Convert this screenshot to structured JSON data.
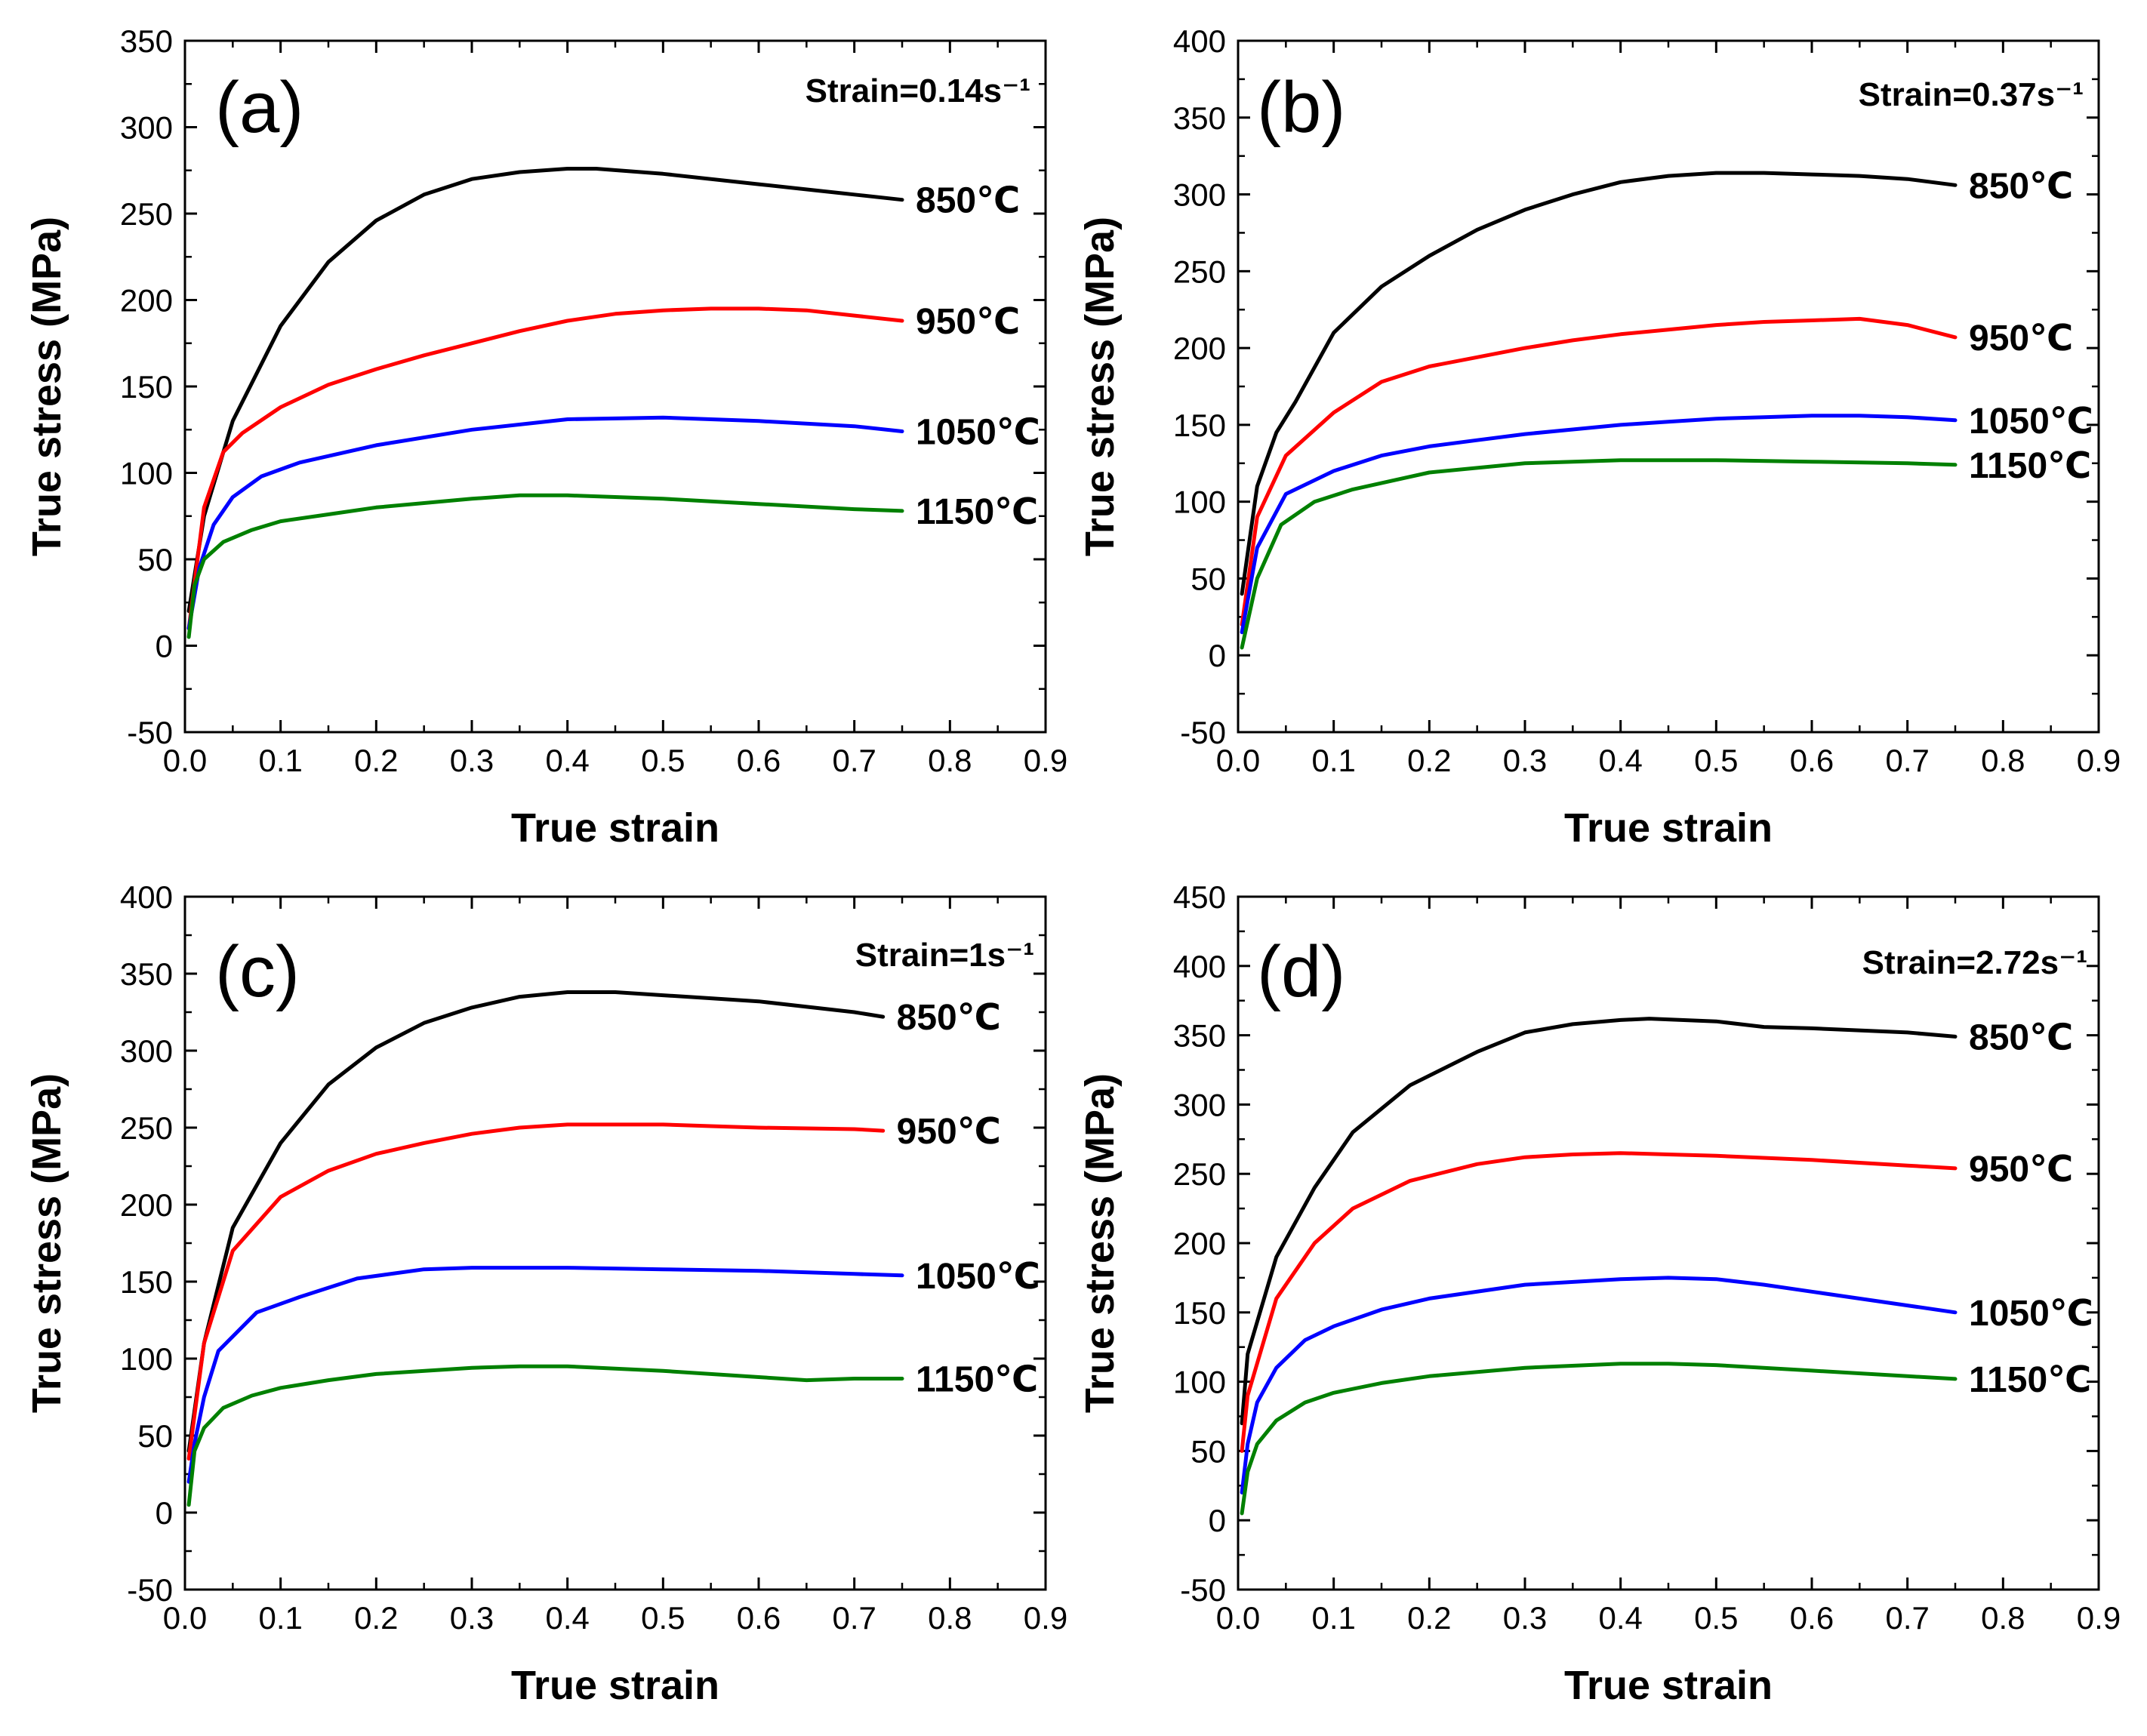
{
  "chart_data": [
    {
      "type": "line",
      "panel": "(a)",
      "annotation": "Strain=0.14s⁻¹",
      "xlabel": "True strain",
      "ylabel": "True stress (MPa)",
      "xlim": [
        0,
        0.9
      ],
      "ylim": [
        -50,
        350
      ],
      "xticks": [
        "0.0",
        "0.1",
        "0.2",
        "0.3",
        "0.4",
        "0.5",
        "0.6",
        "0.7",
        "0.8",
        "0.9"
      ],
      "yticks": [
        "-50",
        "0",
        "50",
        "100",
        "150",
        "200",
        "250",
        "300",
        "350"
      ],
      "series": [
        {
          "name": "850℃",
          "color": "#000000",
          "x": [
            0.004,
            0.02,
            0.05,
            0.1,
            0.15,
            0.2,
            0.25,
            0.3,
            0.35,
            0.4,
            0.43,
            0.5,
            0.6,
            0.7,
            0.75
          ],
          "y": [
            20,
            75,
            130,
            185,
            222,
            246,
            261,
            270,
            274,
            276,
            276,
            273,
            267,
            261,
            258
          ]
        },
        {
          "name": "950℃",
          "color": "#ff0000",
          "x": [
            0.004,
            0.02,
            0.04,
            0.06,
            0.1,
            0.15,
            0.2,
            0.25,
            0.3,
            0.35,
            0.4,
            0.45,
            0.5,
            0.55,
            0.6,
            0.65,
            0.7,
            0.75
          ],
          "y": [
            10,
            80,
            112,
            123,
            138,
            151,
            160,
            168,
            175,
            182,
            188,
            192,
            194,
            195,
            195,
            194,
            191,
            188
          ]
        },
        {
          "name": "1050℃",
          "color": "#0000ff",
          "x": [
            0.004,
            0.015,
            0.03,
            0.05,
            0.08,
            0.12,
            0.2,
            0.3,
            0.4,
            0.5,
            0.55,
            0.6,
            0.7,
            0.75
          ],
          "y": [
            10,
            45,
            70,
            86,
            98,
            106,
            116,
            125,
            131,
            132,
            131,
            130,
            127,
            124
          ]
        },
        {
          "name": "1150℃",
          "color": "#008000",
          "x": [
            0.004,
            0.01,
            0.02,
            0.04,
            0.07,
            0.1,
            0.15,
            0.2,
            0.3,
            0.35,
            0.4,
            0.5,
            0.6,
            0.7,
            0.75
          ],
          "y": [
            5,
            35,
            50,
            60,
            67,
            72,
            76,
            80,
            85,
            87,
            87,
            85,
            82,
            79,
            78
          ]
        }
      ]
    },
    {
      "type": "line",
      "panel": "(b)",
      "annotation": "Strain=0.37s⁻¹",
      "xlabel": "True strain",
      "ylabel": "True stress (MPa)",
      "xlim": [
        0,
        0.9
      ],
      "ylim": [
        -50,
        400
      ],
      "xticks": [
        "0.0",
        "0.1",
        "0.2",
        "0.3",
        "0.4",
        "0.5",
        "0.6",
        "0.7",
        "0.8",
        "0.9"
      ],
      "yticks": [
        "-50",
        "0",
        "50",
        "100",
        "150",
        "200",
        "250",
        "300",
        "350",
        "400"
      ],
      "series": [
        {
          "name": "850℃",
          "color": "#000000",
          "x": [
            0.004,
            0.02,
            0.04,
            0.06,
            0.1,
            0.15,
            0.2,
            0.25,
            0.3,
            0.35,
            0.4,
            0.45,
            0.5,
            0.55,
            0.6,
            0.65,
            0.7,
            0.75
          ],
          "y": [
            40,
            110,
            145,
            165,
            210,
            240,
            260,
            277,
            290,
            300,
            308,
            312,
            314,
            314,
            313,
            312,
            310,
            306
          ]
        },
        {
          "name": "950℃",
          "color": "#ff0000",
          "x": [
            0.004,
            0.02,
            0.05,
            0.1,
            0.15,
            0.2,
            0.25,
            0.3,
            0.35,
            0.4,
            0.45,
            0.5,
            0.55,
            0.6,
            0.65,
            0.7,
            0.75
          ],
          "y": [
            20,
            90,
            130,
            158,
            178,
            188,
            194,
            200,
            205,
            209,
            212,
            215,
            217,
            218,
            219,
            215,
            207
          ]
        },
        {
          "name": "1050℃",
          "color": "#0000ff",
          "x": [
            0.004,
            0.02,
            0.05,
            0.1,
            0.15,
            0.2,
            0.25,
            0.3,
            0.35,
            0.4,
            0.45,
            0.5,
            0.55,
            0.6,
            0.65,
            0.7,
            0.75
          ],
          "y": [
            15,
            70,
            105,
            120,
            130,
            136,
            140,
            144,
            147,
            150,
            152,
            154,
            155,
            156,
            156,
            155,
            153
          ]
        },
        {
          "name": "1150℃",
          "color": "#008000",
          "x": [
            0.004,
            0.02,
            0.045,
            0.08,
            0.12,
            0.2,
            0.3,
            0.4,
            0.5,
            0.6,
            0.7,
            0.75
          ],
          "y": [
            5,
            50,
            85,
            100,
            108,
            119,
            125,
            127,
            127,
            126,
            125,
            124
          ]
        }
      ]
    },
    {
      "type": "line",
      "panel": "(c)",
      "annotation": "Strain=1s⁻¹",
      "xlabel": "True strain",
      "ylabel": "True stress (MPa)",
      "xlim": [
        0,
        0.9
      ],
      "ylim": [
        -50,
        400
      ],
      "xticks": [
        "0.0",
        "0.1",
        "0.2",
        "0.3",
        "0.4",
        "0.5",
        "0.6",
        "0.7",
        "0.8",
        "0.9"
      ],
      "yticks": [
        "-50",
        "0",
        "50",
        "100",
        "150",
        "200",
        "250",
        "300",
        "350",
        "400"
      ],
      "series": [
        {
          "name": "850℃",
          "color": "#000000",
          "x": [
            0.004,
            0.02,
            0.05,
            0.1,
            0.15,
            0.2,
            0.25,
            0.3,
            0.35,
            0.4,
            0.45,
            0.5,
            0.55,
            0.6,
            0.7,
            0.73
          ],
          "y": [
            40,
            110,
            185,
            240,
            278,
            302,
            318,
            328,
            335,
            338,
            338,
            336,
            334,
            332,
            325,
            322
          ]
        },
        {
          "name": "950℃",
          "color": "#ff0000",
          "x": [
            0.004,
            0.02,
            0.05,
            0.1,
            0.15,
            0.2,
            0.25,
            0.3,
            0.35,
            0.4,
            0.45,
            0.5,
            0.55,
            0.6,
            0.7,
            0.73
          ],
          "y": [
            35,
            110,
            170,
            205,
            222,
            233,
            240,
            246,
            250,
            252,
            252,
            252,
            251,
            250,
            249,
            248
          ]
        },
        {
          "name": "1050℃",
          "color": "#0000ff",
          "x": [
            0.004,
            0.01,
            0.02,
            0.035,
            0.075,
            0.12,
            0.18,
            0.25,
            0.3,
            0.4,
            0.5,
            0.6,
            0.7,
            0.75
          ],
          "y": [
            20,
            45,
            75,
            105,
            130,
            140,
            152,
            158,
            159,
            159,
            158,
            157,
            155,
            154
          ]
        },
        {
          "name": "1150℃",
          "color": "#008000",
          "x": [
            0.004,
            0.01,
            0.02,
            0.04,
            0.07,
            0.1,
            0.15,
            0.2,
            0.3,
            0.35,
            0.4,
            0.5,
            0.6,
            0.65,
            0.7,
            0.75
          ],
          "y": [
            5,
            40,
            55,
            68,
            76,
            81,
            86,
            90,
            94,
            95,
            95,
            92,
            88,
            86,
            87,
            87
          ]
        }
      ]
    },
    {
      "type": "line",
      "panel": "(d)",
      "annotation": "Strain=2.72s⁻¹",
      "xlabel": "True strain",
      "ylabel": "True stress (MPa)",
      "xlim": [
        0,
        0.9
      ],
      "ylim": [
        -50,
        450
      ],
      "xticks": [
        "0.0",
        "0.1",
        "0.2",
        "0.3",
        "0.4",
        "0.5",
        "0.6",
        "0.7",
        "0.8",
        "0.9"
      ],
      "yticks": [
        "-50",
        "0",
        "50",
        "100",
        "150",
        "200",
        "250",
        "300",
        "350",
        "400",
        "450"
      ],
      "series": [
        {
          "name": "850℃",
          "color": "#000000",
          "x": [
            0.004,
            0.01,
            0.04,
            0.08,
            0.12,
            0.18,
            0.25,
            0.3,
            0.35,
            0.4,
            0.43,
            0.5,
            0.55,
            0.6,
            0.7,
            0.75
          ],
          "y": [
            70,
            120,
            190,
            240,
            280,
            314,
            338,
            352,
            358,
            361,
            362,
            360,
            356,
            355,
            352,
            349
          ]
        },
        {
          "name": "950℃",
          "color": "#ff0000",
          "x": [
            0.004,
            0.01,
            0.04,
            0.08,
            0.12,
            0.18,
            0.25,
            0.3,
            0.35,
            0.4,
            0.45,
            0.5,
            0.6,
            0.7,
            0.75
          ],
          "y": [
            50,
            90,
            160,
            200,
            225,
            245,
            257,
            262,
            264,
            265,
            264,
            263,
            260,
            256,
            254
          ]
        },
        {
          "name": "1050℃",
          "color": "#0000ff",
          "x": [
            0.004,
            0.01,
            0.02,
            0.04,
            0.07,
            0.1,
            0.15,
            0.2,
            0.3,
            0.4,
            0.45,
            0.5,
            0.55,
            0.6,
            0.7,
            0.75
          ],
          "y": [
            20,
            55,
            85,
            110,
            130,
            140,
            152,
            160,
            170,
            174,
            175,
            174,
            170,
            165,
            155,
            150
          ]
        },
        {
          "name": "1150℃",
          "color": "#008000",
          "x": [
            0.004,
            0.01,
            0.02,
            0.04,
            0.07,
            0.1,
            0.15,
            0.2,
            0.3,
            0.4,
            0.45,
            0.5,
            0.6,
            0.7,
            0.75
          ],
          "y": [
            5,
            35,
            55,
            72,
            85,
            92,
            99,
            104,
            110,
            113,
            113,
            112,
            108,
            104,
            102
          ]
        }
      ]
    }
  ]
}
